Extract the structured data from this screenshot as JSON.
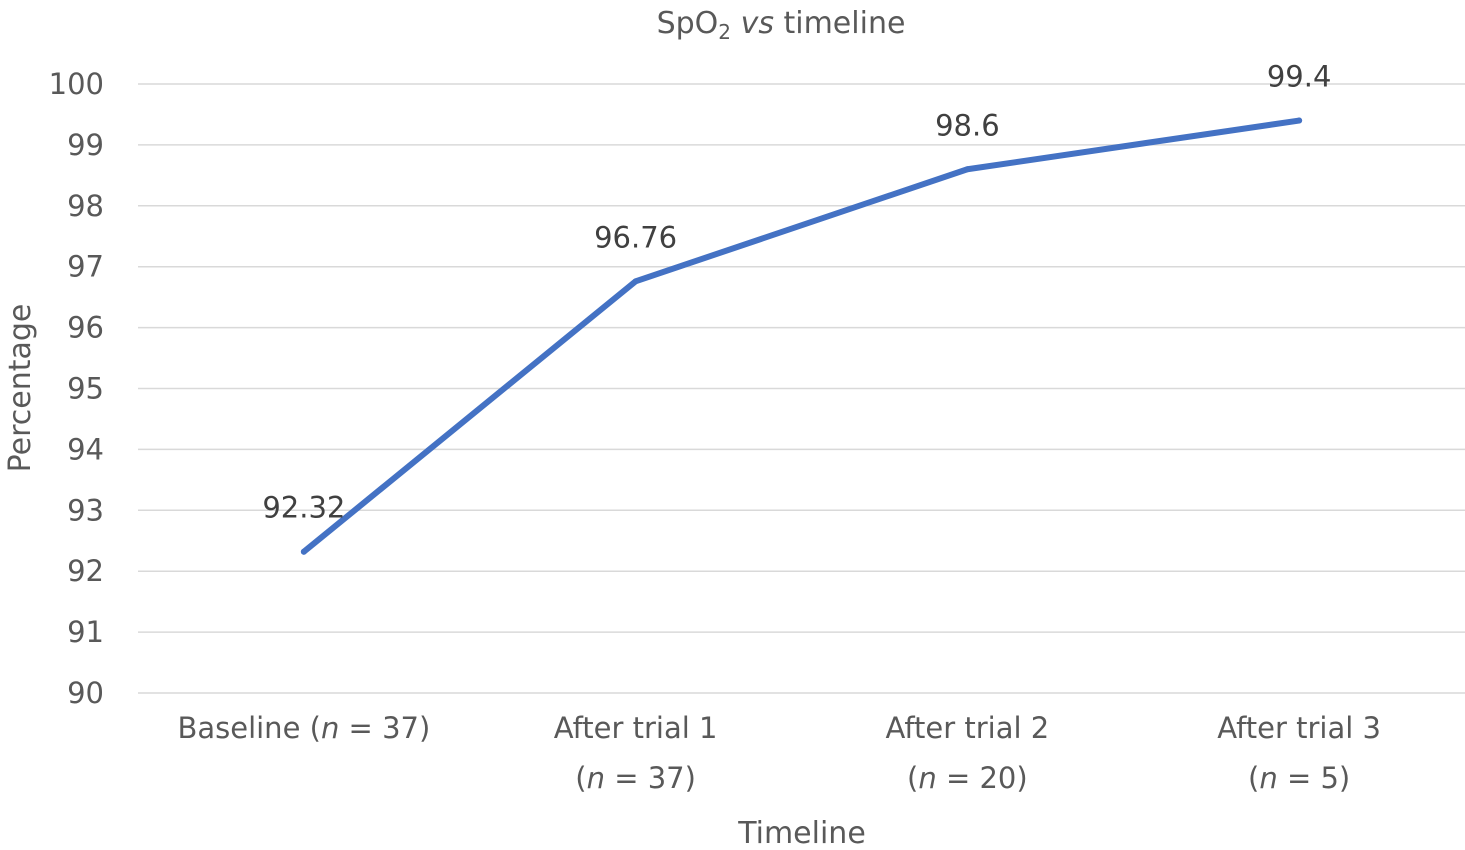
{
  "chart_data": {
    "type": "line",
    "title_parts": [
      "SpO",
      "2",
      " ",
      "vs",
      " timeline"
    ],
    "xlabel": "Timeline",
    "ylabel": "Percentage",
    "ylim": [
      90,
      100
    ],
    "yticks": [
      "90",
      "91",
      "92",
      "93",
      "94",
      "95",
      "96",
      "97",
      "98",
      "99",
      "100"
    ],
    "grid": true,
    "legend": "none",
    "categories": [
      {
        "lines": [
          [
            "Baseline (",
            "n",
            " = 37)"
          ]
        ]
      },
      {
        "lines": [
          [
            "After trial 1"
          ],
          [
            "(",
            "n",
            " = 37)"
          ]
        ]
      },
      {
        "lines": [
          [
            "After trial 2"
          ],
          [
            "(",
            "n",
            " = 20)"
          ]
        ]
      },
      {
        "lines": [
          [
            "After trial 3"
          ],
          [
            "(",
            "n",
            " = 5)"
          ]
        ]
      }
    ],
    "series": [
      {
        "values": [
          92.32,
          96.76,
          98.6,
          99.4
        ],
        "labels": [
          "92.32",
          "96.76",
          "98.6",
          "99.4"
        ],
        "color": "#4472c4"
      }
    ]
  }
}
